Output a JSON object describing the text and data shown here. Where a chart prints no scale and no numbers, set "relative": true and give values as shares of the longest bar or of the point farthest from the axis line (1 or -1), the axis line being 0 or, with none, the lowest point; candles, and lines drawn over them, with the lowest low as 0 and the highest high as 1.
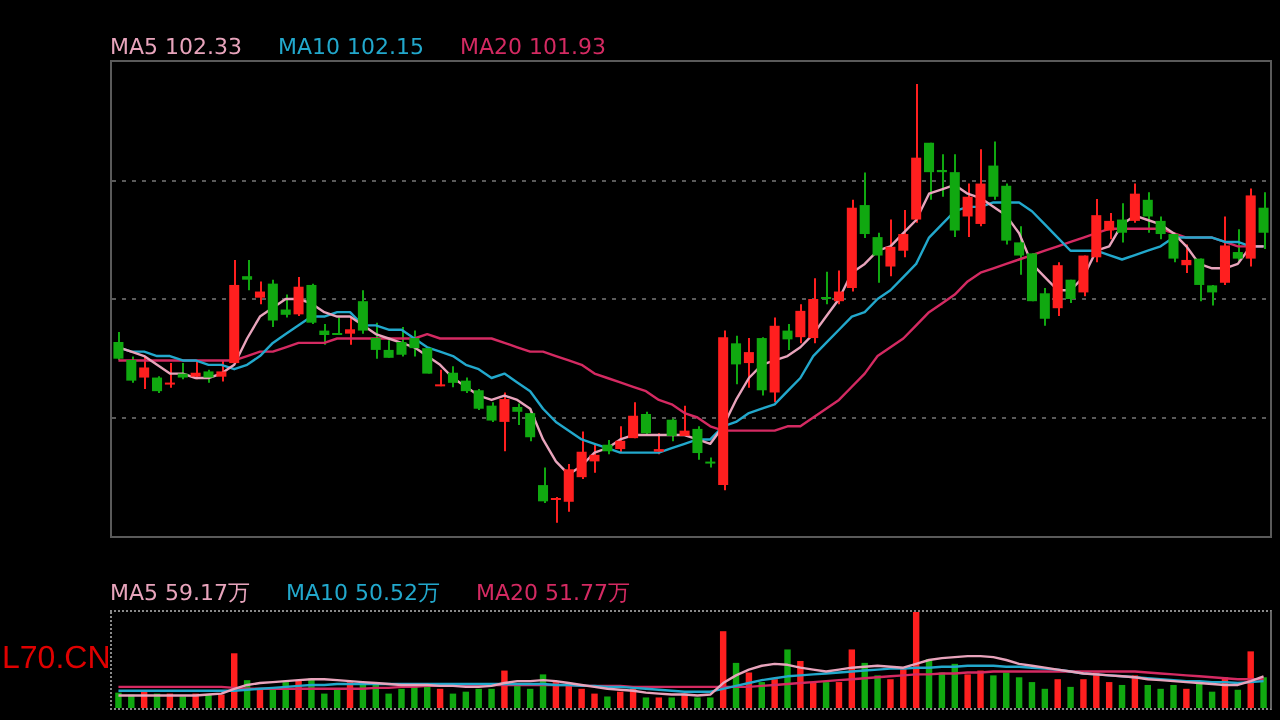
{
  "chart_data": [
    {
      "type": "candlestick",
      "relative": true,
      "grid": true,
      "legend": "top left",
      "tick_labels": false,
      "marker": "none",
      "categories": [
        null,
        null,
        null,
        null,
        null,
        null,
        null,
        null,
        null,
        null,
        null,
        null,
        null,
        null,
        null,
        null,
        null,
        null,
        null,
        null,
        null,
        null,
        null,
        null,
        null,
        null,
        null,
        null,
        null,
        null,
        null,
        null,
        null,
        null,
        null,
        null,
        null,
        null,
        null,
        null,
        null,
        null,
        null,
        null,
        null,
        null,
        null,
        null,
        null,
        null,
        null,
        null,
        null,
        null,
        null,
        null,
        null,
        null,
        null,
        null,
        null,
        null,
        null,
        null,
        null,
        null,
        null,
        null,
        null,
        null,
        null,
        null,
        null,
        null,
        null,
        null,
        null,
        null,
        null,
        null,
        null,
        null,
        null,
        null,
        null,
        null,
        null,
        null,
        null,
        null
      ],
      "ohlc": [
        [
          0.412,
          0.435,
          0.371,
          0.374
        ],
        [
          0.371,
          0.379,
          0.319,
          0.324
        ],
        [
          0.331,
          0.379,
          0.305,
          0.354
        ],
        [
          0.331,
          0.334,
          0.296,
          0.3
        ],
        [
          0.315,
          0.364,
          0.308,
          0.319
        ],
        [
          0.34,
          0.364,
          0.327,
          0.331
        ],
        [
          0.333,
          0.37,
          0.327,
          0.342
        ],
        [
          0.345,
          0.349,
          0.319,
          0.331
        ],
        [
          0.333,
          0.371,
          0.322,
          0.345
        ],
        [
          0.364,
          0.599,
          0.364,
          0.542
        ],
        [
          0.562,
          0.599,
          0.53,
          0.554
        ],
        [
          0.513,
          0.55,
          0.498,
          0.527
        ],
        [
          0.545,
          0.554,
          0.446,
          0.461
        ],
        [
          0.486,
          0.52,
          0.468,
          0.474
        ],
        [
          0.475,
          0.56,
          0.471,
          0.538
        ],
        [
          0.542,
          0.545,
          0.453,
          0.456
        ],
        [
          0.438,
          0.453,
          0.406,
          0.428
        ],
        [
          0.431,
          0.468,
          0.428,
          0.428
        ],
        [
          0.431,
          0.468,
          0.406,
          0.441
        ],
        [
          0.505,
          0.53,
          0.431,
          0.438
        ],
        [
          0.421,
          0.456,
          0.374,
          0.394
        ],
        [
          0.394,
          0.416,
          0.376,
          0.376
        ],
        [
          0.412,
          0.446,
          0.379,
          0.383
        ],
        [
          0.421,
          0.438,
          0.379,
          0.398
        ],
        [
          0.398,
          0.401,
          0.34,
          0.34
        ],
        [
          0.311,
          0.349,
          0.311,
          0.315
        ],
        [
          0.342,
          0.357,
          0.309,
          0.319
        ],
        [
          0.324,
          0.331,
          0.296,
          0.3
        ],
        [
          0.302,
          0.305,
          0.257,
          0.26
        ],
        [
          0.267,
          0.275,
          0.23,
          0.233
        ],
        [
          0.23,
          0.297,
          0.163,
          0.282
        ],
        [
          0.264,
          0.272,
          0.223,
          0.253
        ],
        [
          0.25,
          0.26,
          0.186,
          0.195
        ],
        [
          0.086,
          0.126,
          0.045,
          0.049
        ],
        [
          0.052,
          0.059,
          0,
          0.056
        ],
        [
          0.048,
          0.134,
          0.025,
          0.122
        ],
        [
          0.104,
          0.208,
          0.1,
          0.162
        ],
        [
          0.14,
          0.178,
          0.114,
          0.155
        ],
        [
          0.178,
          0.189,
          0.156,
          0.163
        ],
        [
          0.168,
          0.22,
          0.159,
          0.187
        ],
        [
          0.193,
          0.275,
          0.193,
          0.244
        ],
        [
          0.248,
          0.253,
          0.201,
          0.204
        ],
        [
          0.162,
          0.204,
          0.156,
          0.168
        ],
        [
          0.235,
          0.238,
          0.186,
          0.198
        ],
        [
          0.198,
          0.267,
          0.198,
          0.21
        ],
        [
          0.214,
          0.22,
          0.144,
          0.159
        ],
        [
          0.138,
          0.149,
          0.126,
          0.135
        ],
        [
          0.086,
          0.438,
          0.074,
          0.423
        ],
        [
          0.409,
          0.426,
          0.316,
          0.361
        ],
        [
          0.364,
          0.421,
          0.308,
          0.389
        ],
        [
          0.421,
          0.423,
          0.29,
          0.302
        ],
        [
          0.297,
          0.468,
          0.275,
          0.449
        ],
        [
          0.438,
          0.453,
          0.394,
          0.418
        ],
        [
          0.423,
          0.498,
          0.409,
          0.483
        ],
        [
          0.421,
          0.557,
          0.409,
          0.51
        ],
        [
          0.513,
          0.572,
          0.498,
          0.51
        ],
        [
          0.505,
          0.575,
          0.498,
          0.527
        ],
        [
          0.535,
          0.736,
          0.527,
          0.718
        ],
        [
          0.724,
          0.798,
          0.649,
          0.658
        ],
        [
          0.651,
          0.661,
          0.547,
          0.609
        ],
        [
          0.584,
          0.691,
          0.562,
          0.629
        ],
        [
          0.62,
          0.713,
          0.605,
          0.658
        ],
        [
          0.691,
          1,
          0.684,
          0.832
        ],
        [
          0.866,
          0.866,
          0.736,
          0.799
        ],
        [
          0.804,
          0.84,
          0.743,
          0.799
        ],
        [
          0.799,
          0.84,
          0.651,
          0.666
        ],
        [
          0.698,
          0.773,
          0.651,
          0.743
        ],
        [
          0.681,
          0.851,
          0.676,
          0.773
        ],
        [
          0.814,
          0.869,
          0.736,
          0.743
        ],
        [
          0.768,
          0.773,
          0.634,
          0.643
        ],
        [
          0.639,
          0.676,
          0.565,
          0.609
        ],
        [
          0.614,
          0.614,
          0.505,
          0.505
        ],
        [
          0.523,
          0.535,
          0.449,
          0.465
        ],
        [
          0.489,
          0.594,
          0.471,
          0.587
        ],
        [
          0.554,
          0.554,
          0.501,
          0.51
        ],
        [
          0.525,
          0.609,
          0.516,
          0.609
        ],
        [
          0.605,
          0.738,
          0.594,
          0.701
        ],
        [
          0.666,
          0.706,
          0.646,
          0.688
        ],
        [
          0.691,
          0.728,
          0.639,
          0.661
        ],
        [
          0.688,
          0.773,
          0.684,
          0.75
        ],
        [
          0.736,
          0.753,
          0.661,
          0.698
        ],
        [
          0.688,
          0.698,
          0.646,
          0.658
        ],
        [
          0.658,
          0.661,
          0.594,
          0.602
        ],
        [
          0.587,
          0.634,
          0.569,
          0.599
        ],
        [
          0.602,
          0.602,
          0.505,
          0.542
        ],
        [
          0.541,
          0.542,
          0.495,
          0.525
        ],
        [
          0.547,
          0.698,
          0.542,
          0.632
        ],
        [
          0.617,
          0.669,
          0.594,
          0.602
        ],
        [
          0.602,
          0.762,
          0.584,
          0.746
        ],
        [
          0.718,
          0.753,
          0.624,
          0.661
        ]
      ],
      "colors": [
        "#10a810",
        "#10a810",
        "#ff1f1f",
        "#10a810",
        "#ff1f1f",
        "#10a810",
        "#ff1f1f",
        "#10a810",
        "#ff1f1f",
        "#ff1f1f",
        "#10a810",
        "#ff1f1f",
        "#10a810",
        "#10a810",
        "#ff1f1f",
        "#10a810",
        "#10a810",
        "#10a810",
        "#ff1f1f",
        "#10a810",
        "#10a810",
        "#10a810",
        "#10a810",
        "#10a810",
        "#10a810",
        "#ff1f1f",
        "#10a810",
        "#10a810",
        "#10a810",
        "#10a810",
        "#ff1f1f",
        "#10a810",
        "#10a810",
        "#10a810",
        "#ff1f1f",
        "#ff1f1f",
        "#ff1f1f",
        "#ff1f1f",
        "#10a810",
        "#ff1f1f",
        "#ff1f1f",
        "#10a810",
        "#ff1f1f",
        "#10a810",
        "#ff1f1f",
        "#10a810",
        "#10a810",
        "#ff1f1f",
        "#10a810",
        "#ff1f1f",
        "#10a810",
        "#ff1f1f",
        "#10a810",
        "#ff1f1f",
        "#ff1f1f",
        "#10a810",
        "#ff1f1f",
        "#ff1f1f",
        "#10a810",
        "#10a810",
        "#ff1f1f",
        "#ff1f1f",
        "#ff1f1f",
        "#10a810",
        "#10a810",
        "#10a810",
        "#ff1f1f",
        "#ff1f1f",
        "#10a810",
        "#10a810",
        "#10a810",
        "#10a810",
        "#10a810",
        "#ff1f1f",
        "#10a810",
        "#ff1f1f",
        "#ff1f1f",
        "#ff1f1f",
        "#10a810",
        "#ff1f1f",
        "#10a810",
        "#10a810",
        "#10a810",
        "#ff1f1f",
        "#10a810",
        "#10a810",
        "#ff1f1f",
        "#10a810",
        "#ff1f1f",
        "#10a810"
      ],
      "series": [
        {
          "name": "MA5 102.33",
          "type": "line",
          "color": "#e8a4bc",
          "values": [
            0.4,
            0.39,
            0.38,
            0.36,
            0.34,
            0.34,
            0.33,
            0.33,
            0.34,
            0.36,
            0.42,
            0.47,
            0.49,
            0.51,
            0.51,
            0.5,
            0.48,
            0.47,
            0.47,
            0.45,
            0.43,
            0.42,
            0.41,
            0.4,
            0.38,
            0.36,
            0.33,
            0.31,
            0.29,
            0.28,
            0.29,
            0.28,
            0.26,
            0.19,
            0.14,
            0.11,
            0.13,
            0.16,
            0.17,
            0.19,
            0.2,
            0.2,
            0.2,
            0.2,
            0.2,
            0.19,
            0.18,
            0.22,
            0.28,
            0.33,
            0.36,
            0.37,
            0.38,
            0.4,
            0.43,
            0.47,
            0.51,
            0.57,
            0.59,
            0.62,
            0.63,
            0.66,
            0.69,
            0.75,
            0.76,
            0.77,
            0.75,
            0.74,
            0.72,
            0.7,
            0.66,
            0.59,
            0.56,
            0.53,
            0.53,
            0.56,
            0.62,
            0.63,
            0.68,
            0.7,
            0.69,
            0.68,
            0.66,
            0.63,
            0.59,
            0.58,
            0.58,
            0.59,
            0.63,
            0.63
          ]
        },
        {
          "name": "MA10 102.15",
          "type": "line",
          "color": "#22a8cc",
          "values": [
            0.4,
            0.39,
            0.39,
            0.38,
            0.38,
            0.37,
            0.37,
            0.36,
            0.36,
            0.35,
            0.36,
            0.38,
            0.41,
            0.43,
            0.45,
            0.47,
            0.47,
            0.48,
            0.48,
            0.45,
            0.45,
            0.44,
            0.44,
            0.42,
            0.4,
            0.39,
            0.38,
            0.36,
            0.35,
            0.33,
            0.34,
            0.32,
            0.3,
            0.26,
            0.23,
            0.21,
            0.19,
            0.18,
            0.17,
            0.16,
            0.16,
            0.16,
            0.16,
            0.17,
            0.18,
            0.19,
            0.19,
            0.22,
            0.23,
            0.25,
            0.26,
            0.27,
            0.3,
            0.33,
            0.38,
            0.41,
            0.44,
            0.47,
            0.48,
            0.51,
            0.53,
            0.56,
            0.59,
            0.65,
            0.68,
            0.71,
            0.72,
            0.72,
            0.73,
            0.73,
            0.73,
            0.71,
            0.68,
            0.65,
            0.62,
            0.62,
            0.62,
            0.61,
            0.6,
            0.61,
            0.62,
            0.63,
            0.65,
            0.65,
            0.65,
            0.65,
            0.64,
            0.64,
            0.63,
            0.63
          ]
        },
        {
          "name": "MA20 101.93",
          "type": "line",
          "color": "#d42a62",
          "values": [
            0.37,
            0.37,
            0.37,
            0.37,
            0.37,
            0.37,
            0.37,
            0.37,
            0.37,
            0.37,
            0.38,
            0.39,
            0.39,
            0.4,
            0.41,
            0.41,
            0.41,
            0.42,
            0.42,
            0.42,
            0.42,
            0.42,
            0.42,
            0.42,
            0.43,
            0.42,
            0.42,
            0.42,
            0.42,
            0.42,
            0.41,
            0.4,
            0.39,
            0.39,
            0.38,
            0.37,
            0.36,
            0.34,
            0.33,
            0.32,
            0.31,
            0.3,
            0.28,
            0.27,
            0.25,
            0.24,
            0.22,
            0.21,
            0.21,
            0.21,
            0.21,
            0.21,
            0.22,
            0.22,
            0.24,
            0.26,
            0.28,
            0.31,
            0.34,
            0.38,
            0.4,
            0.42,
            0.45,
            0.48,
            0.5,
            0.52,
            0.55,
            0.57,
            0.58,
            0.59,
            0.6,
            0.61,
            0.62,
            0.63,
            0.64,
            0.65,
            0.66,
            0.67,
            0.67,
            0.67,
            0.67,
            0.67,
            0.66,
            0.65,
            0.65,
            0.65,
            0.64,
            0.63,
            0.63,
            0.63
          ]
        }
      ]
    },
    {
      "type": "bar",
      "relative": true,
      "legend": "top left",
      "tick_labels": false,
      "marker": "none",
      "annotations": [
        "L70.CN"
      ],
      "categories": [
        null,
        null,
        null,
        null,
        null,
        null,
        null,
        null,
        null,
        null,
        null,
        null,
        null,
        null,
        null,
        null,
        null,
        null,
        null,
        null,
        null,
        null,
        null,
        null,
        null,
        null,
        null,
        null,
        null,
        null,
        null,
        null,
        null,
        null,
        null,
        null,
        null,
        null,
        null,
        null,
        null,
        null,
        null,
        null,
        null,
        null,
        null,
        null,
        null,
        null,
        null,
        null,
        null,
        null,
        null,
        null,
        null,
        null,
        null,
        null,
        null,
        null,
        null,
        null,
        null,
        null,
        null,
        null,
        null,
        null,
        null,
        null,
        null,
        null,
        null,
        null,
        null,
        null,
        null,
        null,
        null,
        null,
        null,
        null,
        null,
        null,
        null,
        null,
        null,
        null
      ],
      "series": [
        {
          "type": "bar",
          "values": [
            0.16,
            0.14,
            0.17,
            0.15,
            0.15,
            0.12,
            0.15,
            0.14,
            0.14,
            0.57,
            0.29,
            0.19,
            0.2,
            0.27,
            0.29,
            0.31,
            0.15,
            0.2,
            0.27,
            0.27,
            0.27,
            0.15,
            0.2,
            0.24,
            0.24,
            0.2,
            0.15,
            0.17,
            0.2,
            0.2,
            0.39,
            0.24,
            0.2,
            0.35,
            0.27,
            0.26,
            0.2,
            0.15,
            0.12,
            0.17,
            0.2,
            0.11,
            0.11,
            0.11,
            0.15,
            0.11,
            0.11,
            0.8,
            0.47,
            0.37,
            0.27,
            0.3,
            0.61,
            0.49,
            0.27,
            0.27,
            0.27,
            0.61,
            0.47,
            0.34,
            0.3,
            0.41,
            1,
            0.51,
            0.37,
            0.46,
            0.35,
            0.39,
            0.34,
            0.37,
            0.32,
            0.27,
            0.2,
            0.3,
            0.22,
            0.3,
            0.37,
            0.27,
            0.24,
            0.34,
            0.24,
            0.2,
            0.24,
            0.2,
            0.27,
            0.17,
            0.32,
            0.19,
            0.59,
            0.32
          ],
          "colors": [
            "#10a810",
            "#10a810",
            "#ff1f1f",
            "#10a810",
            "#ff1f1f",
            "#10a810",
            "#ff1f1f",
            "#10a810",
            "#ff1f1f",
            "#ff1f1f",
            "#10a810",
            "#ff1f1f",
            "#10a810",
            "#10a810",
            "#ff1f1f",
            "#10a810",
            "#10a810",
            "#10a810",
            "#ff1f1f",
            "#10a810",
            "#10a810",
            "#10a810",
            "#10a810",
            "#10a810",
            "#10a810",
            "#ff1f1f",
            "#10a810",
            "#10a810",
            "#10a810",
            "#10a810",
            "#ff1f1f",
            "#10a810",
            "#10a810",
            "#10a810",
            "#ff1f1f",
            "#ff1f1f",
            "#ff1f1f",
            "#ff1f1f",
            "#10a810",
            "#ff1f1f",
            "#ff1f1f",
            "#10a810",
            "#ff1f1f",
            "#10a810",
            "#ff1f1f",
            "#10a810",
            "#10a810",
            "#ff1f1f",
            "#10a810",
            "#ff1f1f",
            "#10a810",
            "#ff1f1f",
            "#10a810",
            "#ff1f1f",
            "#ff1f1f",
            "#10a810",
            "#ff1f1f",
            "#ff1f1f",
            "#10a810",
            "#10a810",
            "#ff1f1f",
            "#ff1f1f",
            "#ff1f1f",
            "#10a810",
            "#10a810",
            "#10a810",
            "#ff1f1f",
            "#ff1f1f",
            "#10a810",
            "#10a810",
            "#10a810",
            "#10a810",
            "#10a810",
            "#ff1f1f",
            "#10a810",
            "#ff1f1f",
            "#ff1f1f",
            "#ff1f1f",
            "#10a810",
            "#ff1f1f",
            "#10a810",
            "#10a810",
            "#10a810",
            "#ff1f1f",
            "#10a810",
            "#10a810",
            "#ff1f1f",
            "#10a810",
            "#ff1f1f",
            "#10a810"
          ]
        },
        {
          "name": "MA5 59.17万",
          "type": "line",
          "color": "#e8a4bc",
          "values": [
            0.13,
            0.13,
            0.13,
            0.13,
            0.13,
            0.13,
            0.13,
            0.14,
            0.15,
            0.2,
            0.24,
            0.26,
            0.27,
            0.28,
            0.29,
            0.3,
            0.3,
            0.29,
            0.28,
            0.27,
            0.26,
            0.25,
            0.24,
            0.24,
            0.24,
            0.23,
            0.23,
            0.22,
            0.22,
            0.23,
            0.26,
            0.28,
            0.28,
            0.29,
            0.28,
            0.26,
            0.24,
            0.22,
            0.2,
            0.19,
            0.18,
            0.16,
            0.15,
            0.14,
            0.14,
            0.13,
            0.14,
            0.26,
            0.34,
            0.4,
            0.44,
            0.46,
            0.45,
            0.42,
            0.4,
            0.38,
            0.4,
            0.42,
            0.43,
            0.44,
            0.43,
            0.42,
            0.46,
            0.5,
            0.52,
            0.53,
            0.54,
            0.54,
            0.53,
            0.5,
            0.46,
            0.44,
            0.42,
            0.4,
            0.38,
            0.36,
            0.35,
            0.34,
            0.33,
            0.32,
            0.3,
            0.29,
            0.28,
            0.27,
            0.26,
            0.25,
            0.24,
            0.24,
            0.28,
            0.33
          ]
        },
        {
          "name": "MA10 50.52万",
          "type": "line",
          "color": "#22a8cc",
          "values": [
            0.18,
            0.18,
            0.18,
            0.18,
            0.18,
            0.18,
            0.18,
            0.18,
            0.18,
            0.18,
            0.19,
            0.2,
            0.21,
            0.22,
            0.23,
            0.24,
            0.24,
            0.25,
            0.25,
            0.25,
            0.25,
            0.25,
            0.25,
            0.25,
            0.25,
            0.25,
            0.25,
            0.25,
            0.25,
            0.25,
            0.25,
            0.25,
            0.25,
            0.25,
            0.24,
            0.24,
            0.23,
            0.23,
            0.22,
            0.22,
            0.21,
            0.2,
            0.19,
            0.18,
            0.17,
            0.17,
            0.17,
            0.2,
            0.23,
            0.26,
            0.29,
            0.31,
            0.33,
            0.34,
            0.35,
            0.36,
            0.37,
            0.38,
            0.39,
            0.4,
            0.41,
            0.41,
            0.42,
            0.42,
            0.43,
            0.43,
            0.44,
            0.44,
            0.44,
            0.43,
            0.43,
            0.42,
            0.41,
            0.4,
            0.38,
            0.36,
            0.35,
            0.34,
            0.33,
            0.32,
            0.31,
            0.3,
            0.29,
            0.28,
            0.28,
            0.27,
            0.27,
            0.26,
            0.27,
            0.28
          ]
        },
        {
          "name": "MA20 51.77万",
          "type": "line",
          "color": "#d42a62",
          "values": [
            0.22,
            0.22,
            0.22,
            0.22,
            0.22,
            0.22,
            0.22,
            0.22,
            0.22,
            0.21,
            0.2,
            0.2,
            0.2,
            0.2,
            0.2,
            0.2,
            0.2,
            0.2,
            0.2,
            0.2,
            0.21,
            0.21,
            0.22,
            0.22,
            0.23,
            0.23,
            0.24,
            0.24,
            0.24,
            0.24,
            0.24,
            0.24,
            0.24,
            0.24,
            0.24,
            0.24,
            0.23,
            0.23,
            0.23,
            0.23,
            0.22,
            0.22,
            0.22,
            0.22,
            0.22,
            0.22,
            0.22,
            0.22,
            0.22,
            0.22,
            0.23,
            0.24,
            0.25,
            0.26,
            0.27,
            0.28,
            0.29,
            0.3,
            0.31,
            0.32,
            0.33,
            0.34,
            0.35,
            0.35,
            0.36,
            0.36,
            0.37,
            0.37,
            0.38,
            0.38,
            0.38,
            0.38,
            0.38,
            0.38,
            0.38,
            0.38,
            0.38,
            0.38,
            0.38,
            0.38,
            0.37,
            0.36,
            0.35,
            0.34,
            0.33,
            0.32,
            0.31,
            0.3,
            0.3,
            0.3
          ]
        }
      ]
    }
  ]
}
